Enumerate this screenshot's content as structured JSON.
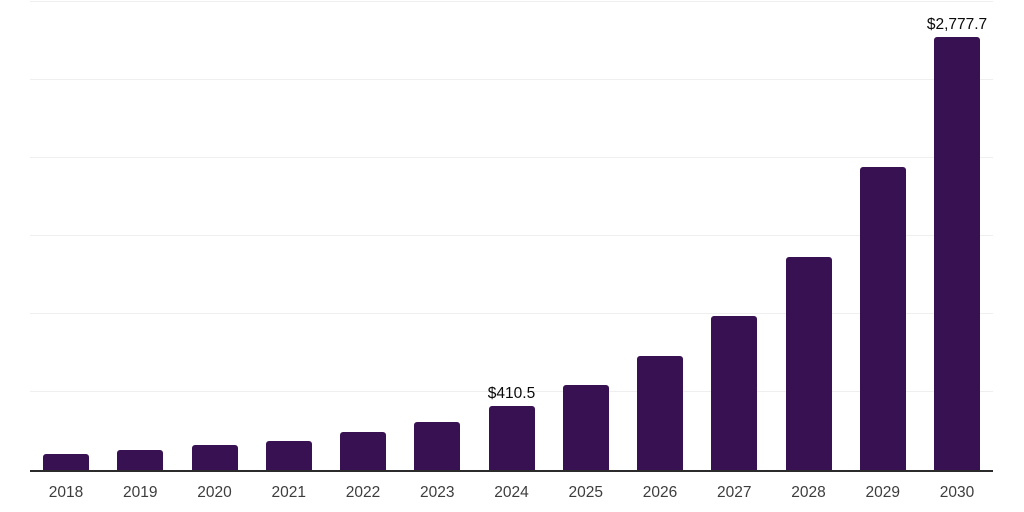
{
  "chart_data": {
    "type": "bar",
    "title": "",
    "xlabel": "",
    "ylabel": "",
    "categories": [
      "2018",
      "2019",
      "2020",
      "2021",
      "2022",
      "2023",
      "2024",
      "2025",
      "2026",
      "2027",
      "2028",
      "2029",
      "2030"
    ],
    "values": [
      102.5,
      128.2,
      157.8,
      188.0,
      241.5,
      309.5,
      410.5,
      545.0,
      733.0,
      986.0,
      1364.0,
      1942.0,
      2777.7
    ],
    "data_labels": {
      "2024": "$410.5",
      "2030": "$2,777.7"
    },
    "ylim": [
      0,
      3000
    ],
    "gridline_interval": 500,
    "grid": "horizontal",
    "legend_position": "none"
  },
  "colors": {
    "bar": "#381152",
    "axis_line": "#2b2b2b",
    "gridline": "#efefef",
    "x_label_text": "#3d3d3d",
    "data_label_text": "#0a0a0a",
    "background": "#ffffff"
  }
}
